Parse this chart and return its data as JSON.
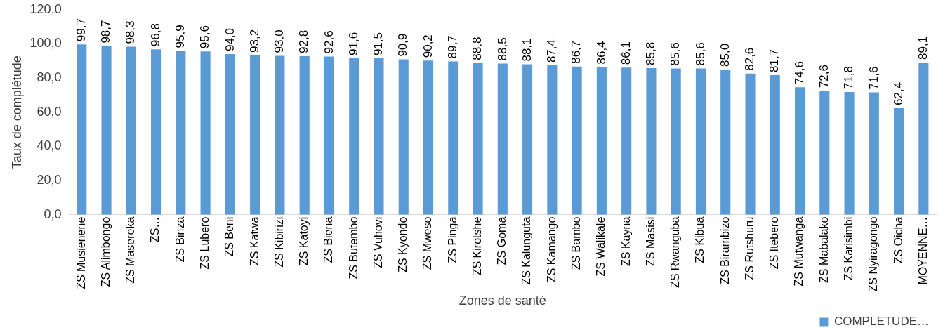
{
  "chart_data": {
    "type": "bar",
    "xlabel": "Zones de santé",
    "ylabel": "Taux de complétude",
    "categories": [
      "ZS Musienene",
      "ZS Alimbongo",
      "ZS Masereka",
      "ZS…",
      "ZS Binza",
      "ZS Lubero",
      "ZS Beni",
      "ZS Katwa",
      "ZS Kibirizi",
      "ZS Katoyi",
      "ZS Biena",
      "ZS Butembo",
      "ZS Vuhovi",
      "ZS Kyondo",
      "ZS Mweso",
      "ZS Pinga",
      "ZS Kirotshe",
      "ZS Goma",
      "ZS Kalunguta",
      "ZS Kamango",
      "ZS Bambo",
      "ZS Walikale",
      "ZS Kayna",
      "ZS Masisi",
      "ZS Rwanguba",
      "ZS Kibua",
      "ZS Birambizo",
      "ZS Rutshuru",
      "ZS Itebero",
      "ZS Mutwanga",
      "ZS Mabalako",
      "ZS Karisimbi",
      "ZS Nyiragongo",
      "ZS Oicha",
      "MOYENNE…"
    ],
    "series": [
      {
        "name": "COMPLETUDE…",
        "color": "#5b9bd5",
        "values": [
          99.7,
          98.7,
          98.3,
          96.8,
          95.9,
          95.6,
          94.0,
          93.2,
          93.0,
          92.8,
          92.6,
          91.6,
          91.5,
          90.9,
          90.2,
          89.7,
          88.8,
          88.5,
          88.1,
          87.4,
          86.7,
          86.4,
          86.1,
          85.8,
          85.6,
          85.6,
          85.0,
          82.6,
          81.7,
          74.6,
          72.6,
          71.8,
          71.6,
          62.4,
          89.1
        ]
      }
    ],
    "ylim": [
      0,
      120
    ],
    "yticks": [
      {
        "value": 0,
        "label": "0,0"
      },
      {
        "value": 20,
        "label": "20,0"
      },
      {
        "value": 40,
        "label": "40,0"
      },
      {
        "value": 60,
        "label": "60,0"
      },
      {
        "value": 80,
        "label": "80,0"
      },
      {
        "value": 100,
        "label": "100,0"
      },
      {
        "value": 120,
        "label": "120,0"
      }
    ],
    "value_labels": [
      "99,7",
      "98,7",
      "98,3",
      "96,8",
      "95,9",
      "95,6",
      "94,0",
      "93,2",
      "93,0",
      "92,8",
      "92,6",
      "91,6",
      "91,5",
      "90,9",
      "90,2",
      "89,7",
      "88,8",
      "88,5",
      "88,1",
      "87,4",
      "86,7",
      "86,4",
      "86,1",
      "85,8",
      "85,6",
      "85,6",
      "85,0",
      "82,6",
      "81,7",
      "74,6",
      "72,6",
      "71,8",
      "71,6",
      "62,4",
      "89,1"
    ],
    "grid": false,
    "legend": "bottom right"
  }
}
